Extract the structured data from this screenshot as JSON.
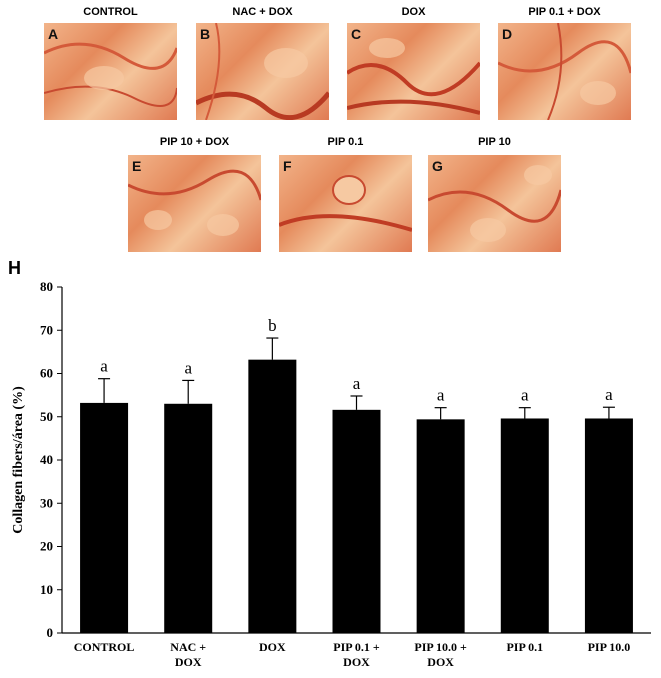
{
  "panels": [
    {
      "letter": "A",
      "title": "CONTROL"
    },
    {
      "letter": "B",
      "title": "NAC + DOX"
    },
    {
      "letter": "C",
      "title": "DOX"
    },
    {
      "letter": "D",
      "title": "PIP 0.1 + DOX"
    },
    {
      "letter": "E",
      "title": "PIP 10 + DOX"
    },
    {
      "letter": "F",
      "title": "PIP 0.1"
    },
    {
      "letter": "G",
      "title": "PIP 10"
    }
  ],
  "panel_h_letter": "H",
  "chart_data": {
    "type": "bar",
    "ylabel": "Collagen fibers/área (%)",
    "xlabel": "",
    "ylim": [
      0,
      80
    ],
    "yticks": [
      0,
      10,
      20,
      30,
      40,
      50,
      60,
      70,
      80
    ],
    "categories": [
      [
        "CONTROL"
      ],
      [
        "NAC +",
        "DOX"
      ],
      [
        "DOX"
      ],
      [
        "PIP 0.1 +",
        "DOX"
      ],
      [
        "PIP 10.0 +",
        "DOX"
      ],
      [
        "PIP 0.1"
      ],
      [
        "PIP 10.0"
      ]
    ],
    "values": [
      53.2,
      53.0,
      63.2,
      51.6,
      49.4,
      49.6,
      49.6
    ],
    "errors": [
      5.6,
      5.4,
      5.0,
      3.2,
      2.7,
      2.5,
      2.6
    ],
    "significance": [
      "a",
      "a",
      "b",
      "a",
      "a",
      "a",
      "a"
    ],
    "bar_color": "#000000"
  }
}
